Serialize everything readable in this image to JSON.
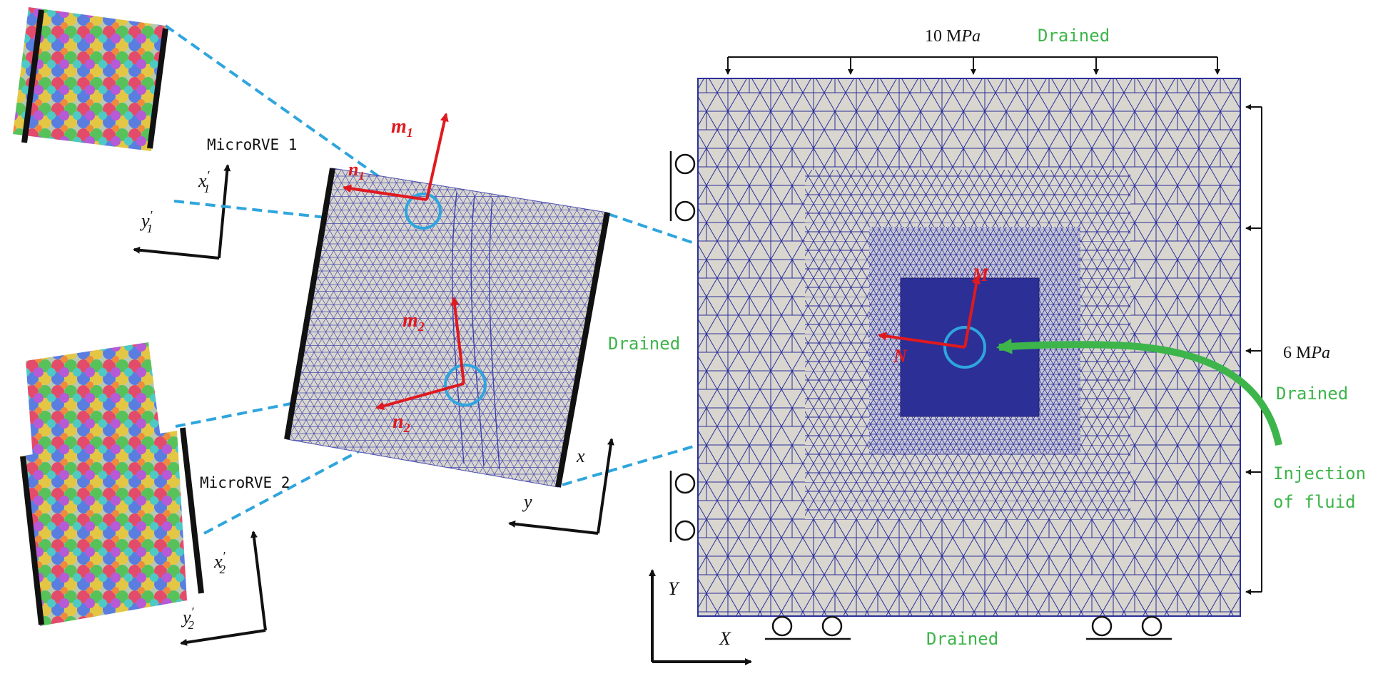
{
  "colors": {
    "mesh": "#2a2f9a",
    "mesh_fill": "#d9d6cf",
    "refined": "#2c2f96",
    "dashed": "#2fa5dd",
    "red_arrow": "#e0191f",
    "green": "#3db54a",
    "black": "#111111"
  },
  "micro_rve_1": {
    "label": "MicroRVE 1",
    "axis_x": "x",
    "axis_y": "y",
    "axis_x_sup": "′",
    "axis_sub": "1"
  },
  "micro_rve_2": {
    "label": "MicroRVE 2",
    "axis_x": "x",
    "axis_y": "y",
    "axis_x_sup": "′",
    "axis_sub": "2"
  },
  "meso": {
    "m1": "m",
    "m1_sub": "1",
    "n1": "n",
    "n1_sub": "1",
    "m2": "m",
    "m2_sub": "2",
    "n2": "n",
    "n2_sub": "2",
    "axis_x": "x",
    "axis_y": "y"
  },
  "macro": {
    "top_load": "10 M",
    "top_load_unit": "Pa",
    "top_bc": "Drained",
    "right_load": "6 M",
    "right_load_unit": "Pa",
    "right_bc": "Drained",
    "left_bc": "Drained",
    "bottom_bc": "Drained",
    "injection_line1": "Injection",
    "injection_line2": "of fluid",
    "label_M": "M",
    "label_N": "N",
    "axis_X": "X",
    "axis_Y": "Y"
  }
}
